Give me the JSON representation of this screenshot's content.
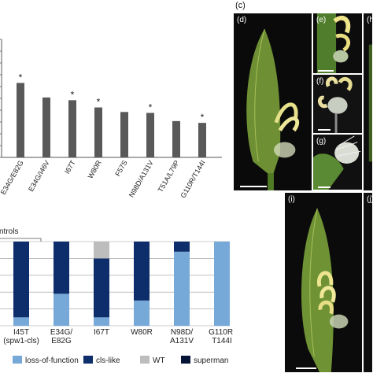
{
  "figure": {
    "panel_c_label": "(c)"
  },
  "chart_data": [
    {
      "type": "bar",
      "categories": [
        "E34G/E82G",
        "E34G/I46V",
        "I67T",
        "W80R",
        "F57S",
        "N98D/A131V",
        "T51A/L79P",
        "G110R/T144I"
      ],
      "values": [
        82,
        66,
        63,
        55,
        50,
        49,
        40,
        38
      ],
      "significant": [
        true,
        false,
        true,
        true,
        false,
        true,
        false,
        true
      ],
      "significance_marker": "*",
      "ylim": [
        0,
        130
      ],
      "grid": false,
      "color": "#595959"
    },
    {
      "type": "bar",
      "stacked": true,
      "header_text": "ntrols",
      "categories": [
        "I45T\n(spw1-cls)",
        "E34G/\nE82G",
        "I67T",
        "W80R",
        "N98D/\nA131V",
        "G110R/\nT144I"
      ],
      "series": [
        {
          "name": "loss-of-function",
          "color": "#77a9d8",
          "values": [
            10,
            38,
            10,
            30,
            88,
            100
          ]
        },
        {
          "name": "cls-like",
          "color": "#0d2d6b",
          "values": [
            90,
            62,
            70,
            70,
            12,
            0
          ]
        },
        {
          "name": "WT",
          "color": "#bdbdbd",
          "values": [
            0,
            0,
            20,
            0,
            0,
            0
          ]
        },
        {
          "name": "superman",
          "color": "#051337",
          "values": [
            0,
            0,
            0,
            0,
            0,
            0
          ]
        }
      ],
      "ylim": [
        0,
        100
      ],
      "grid": true,
      "legend_position": "bottom"
    }
  ],
  "photos": [
    {
      "label": "(d)"
    },
    {
      "label": "(e)"
    },
    {
      "label": "(f)"
    },
    {
      "label": "(g)"
    },
    {
      "label": "(h)"
    },
    {
      "label": "(i)"
    },
    {
      "label": "(j)"
    }
  ]
}
